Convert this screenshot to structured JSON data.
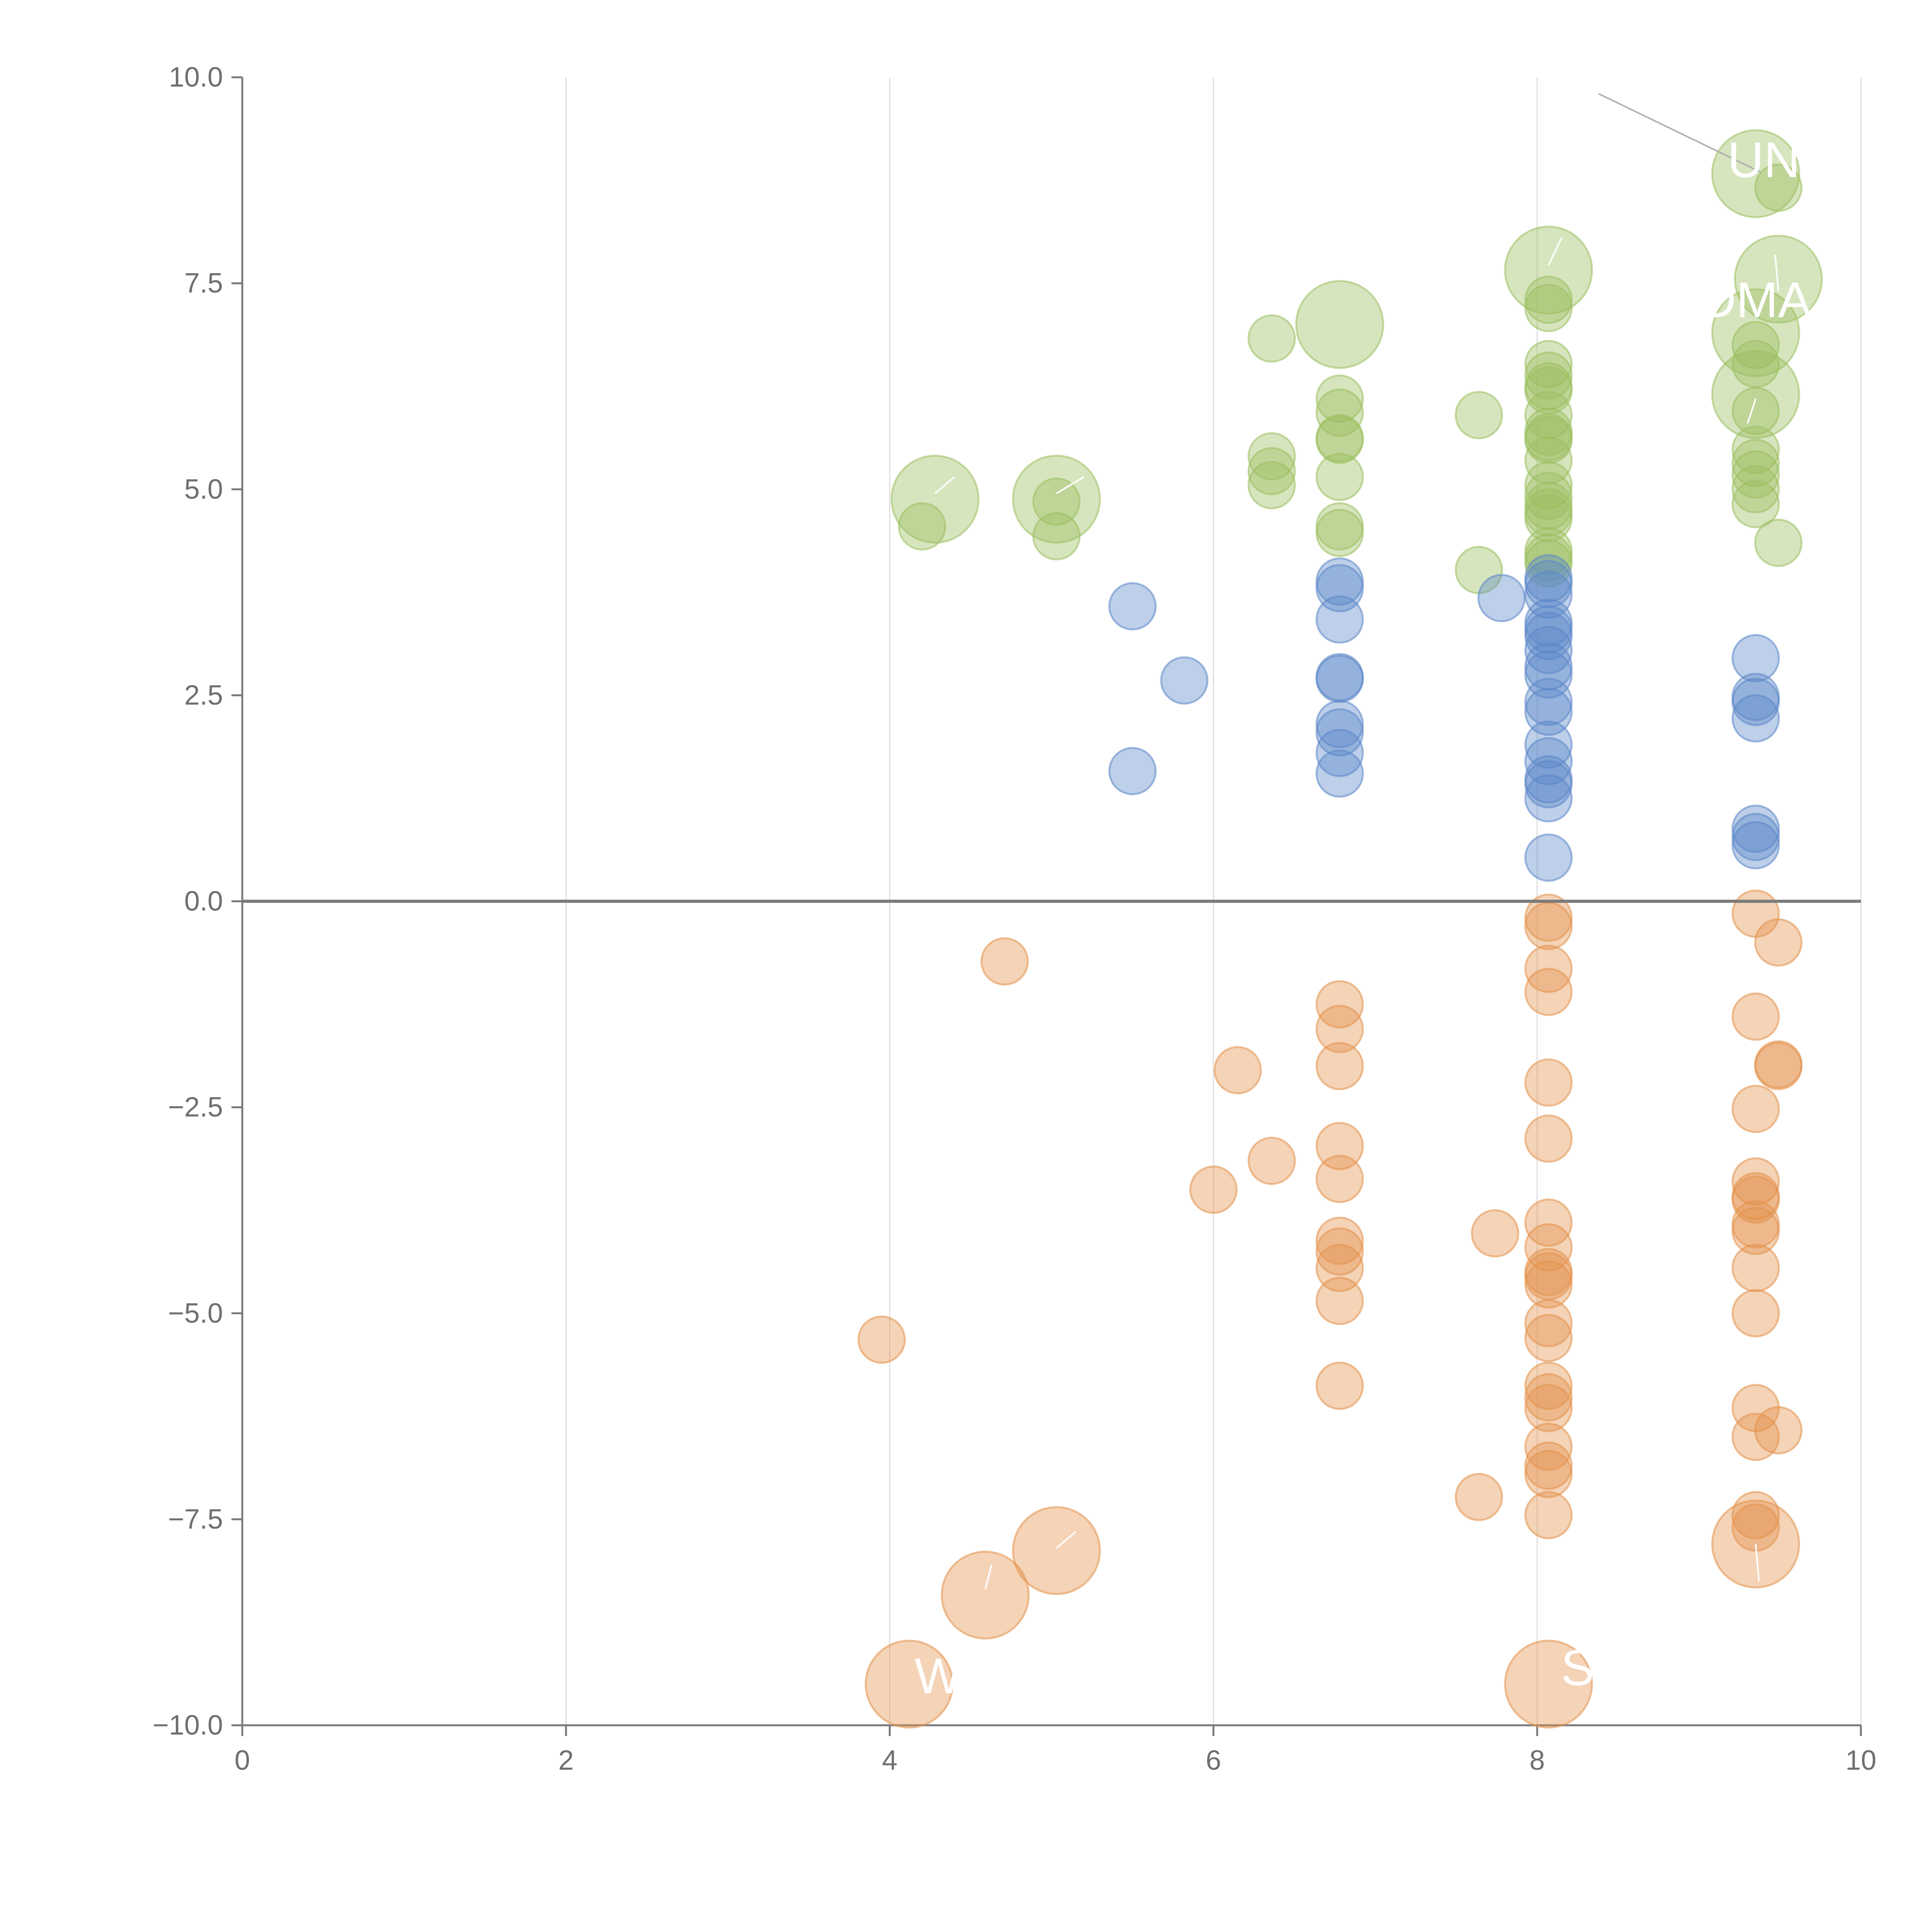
{
  "chart_data": {
    "type": "scatter",
    "title": "",
    "xlabel": "",
    "ylabel": "",
    "xlim": [
      0,
      10
    ],
    "ylim": [
      -10,
      10
    ],
    "x_ticks": [
      0,
      2,
      4,
      6,
      8,
      10
    ],
    "x_tick_labels": [
      "0",
      "2",
      "4",
      "6",
      "8",
      "10"
    ],
    "y_ticks": [
      -10,
      -7.5,
      -5,
      -2.5,
      0,
      2.5,
      5,
      7.5,
      10
    ],
    "y_tick_labels": [
      "−10.0",
      "−7.5",
      "−5.0",
      "−2.5",
      "0.0",
      "2.5",
      "5.0",
      "7.5",
      "10.0"
    ],
    "vertical_gridlines": true,
    "reference_line_y": 0,
    "colors": {
      "green": "#9bbf5e",
      "blue": "#5b87c8",
      "orange": "#e4924a",
      "axis": "#7a7a7a",
      "grid": "#dedede",
      "label": "#ffffff"
    },
    "series": [
      {
        "name": "green",
        "color": "#9bbf5e",
        "points": [
          {
            "x": 4.2,
            "y": 4.55,
            "r": 0.8
          },
          {
            "x": 4.28,
            "y": 4.88,
            "r": 1.5
          },
          {
            "x": 5.03,
            "y": 4.88,
            "r": 1.5
          },
          {
            "x": 5.03,
            "y": 4.85,
            "r": 0.8
          },
          {
            "x": 5.03,
            "y": 4.43,
            "r": 0.8
          },
          {
            "x": 6.36,
            "y": 6.83,
            "r": 0.8
          },
          {
            "x": 6.36,
            "y": 5.4,
            "r": 0.8
          },
          {
            "x": 6.36,
            "y": 5.22,
            "r": 0.8
          },
          {
            "x": 6.36,
            "y": 5.05,
            "r": 0.8
          },
          {
            "x": 6.78,
            "y": 7.0,
            "r": 1.5
          },
          {
            "x": 6.78,
            "y": 6.1,
            "r": 0.8
          },
          {
            "x": 6.78,
            "y": 5.93,
            "r": 0.8
          },
          {
            "x": 6.78,
            "y": 5.62,
            "r": 0.8
          },
          {
            "x": 6.78,
            "y": 5.6,
            "r": 0.8
          },
          {
            "x": 6.78,
            "y": 5.15,
            "r": 0.8
          },
          {
            "x": 6.78,
            "y": 4.55,
            "r": 0.8
          },
          {
            "x": 6.78,
            "y": 4.47,
            "r": 0.8
          },
          {
            "x": 7.64,
            "y": 5.9,
            "r": 0.8
          },
          {
            "x": 7.64,
            "y": 4.02,
            "r": 0.8
          },
          {
            "x": 8.07,
            "y": 7.66,
            "r": 1.5
          },
          {
            "x": 8.07,
            "y": 7.3,
            "r": 0.8
          },
          {
            "x": 8.07,
            "y": 7.2,
            "r": 0.8
          },
          {
            "x": 8.07,
            "y": 6.52,
            "r": 0.8
          },
          {
            "x": 8.07,
            "y": 6.38,
            "r": 0.8
          },
          {
            "x": 8.07,
            "y": 6.25,
            "r": 0.8
          },
          {
            "x": 8.07,
            "y": 6.2,
            "r": 0.8
          },
          {
            "x": 8.07,
            "y": 5.9,
            "r": 0.8
          },
          {
            "x": 8.07,
            "y": 5.7,
            "r": 0.8
          },
          {
            "x": 8.07,
            "y": 5.63,
            "r": 0.8
          },
          {
            "x": 8.07,
            "y": 5.6,
            "r": 0.8
          },
          {
            "x": 8.07,
            "y": 5.35,
            "r": 0.8
          },
          {
            "x": 8.07,
            "y": 5.05,
            "r": 0.8
          },
          {
            "x": 8.07,
            "y": 4.92,
            "r": 0.8
          },
          {
            "x": 8.07,
            "y": 4.8,
            "r": 0.8
          },
          {
            "x": 8.07,
            "y": 4.72,
            "r": 0.8
          },
          {
            "x": 8.07,
            "y": 4.65,
            "r": 0.8
          },
          {
            "x": 8.07,
            "y": 4.25,
            "r": 0.8
          },
          {
            "x": 8.07,
            "y": 4.17,
            "r": 0.8
          },
          {
            "x": 8.07,
            "y": 4.1,
            "r": 0.8
          },
          {
            "x": 9.35,
            "y": 8.83,
            "r": 1.5
          },
          {
            "x": 9.49,
            "y": 8.66,
            "r": 0.8
          },
          {
            "x": 9.49,
            "y": 7.55,
            "r": 1.5
          },
          {
            "x": 9.35,
            "y": 6.9,
            "r": 1.5
          },
          {
            "x": 9.35,
            "y": 6.75,
            "r": 0.8
          },
          {
            "x": 9.35,
            "y": 6.52,
            "r": 0.8
          },
          {
            "x": 9.35,
            "y": 6.15,
            "r": 1.5
          },
          {
            "x": 9.35,
            "y": 5.95,
            "r": 0.8
          },
          {
            "x": 9.35,
            "y": 5.48,
            "r": 0.8
          },
          {
            "x": 9.35,
            "y": 5.32,
            "r": 0.8
          },
          {
            "x": 9.35,
            "y": 5.18,
            "r": 0.8
          },
          {
            "x": 9.35,
            "y": 5.0,
            "r": 0.8
          },
          {
            "x": 9.35,
            "y": 4.82,
            "r": 0.8
          },
          {
            "x": 9.49,
            "y": 4.35,
            "r": 0.8
          }
        ]
      },
      {
        "name": "blue",
        "color": "#5b87c8",
        "points": [
          {
            "x": 5.5,
            "y": 3.58,
            "r": 0.8
          },
          {
            "x": 5.5,
            "y": 1.58,
            "r": 0.8
          },
          {
            "x": 5.82,
            "y": 2.68,
            "r": 0.8
          },
          {
            "x": 6.78,
            "y": 3.88,
            "r": 0.8
          },
          {
            "x": 6.78,
            "y": 3.8,
            "r": 0.8
          },
          {
            "x": 6.78,
            "y": 3.42,
            "r": 0.8
          },
          {
            "x": 6.78,
            "y": 2.72,
            "r": 0.8
          },
          {
            "x": 6.78,
            "y": 2.7,
            "r": 0.8
          },
          {
            "x": 6.78,
            "y": 2.15,
            "r": 0.8
          },
          {
            "x": 6.78,
            "y": 2.05,
            "r": 0.8
          },
          {
            "x": 6.78,
            "y": 1.8,
            "r": 0.8
          },
          {
            "x": 6.78,
            "y": 1.55,
            "r": 0.8
          },
          {
            "x": 7.78,
            "y": 3.68,
            "r": 0.8
          },
          {
            "x": 8.07,
            "y": 3.92,
            "r": 0.8
          },
          {
            "x": 8.07,
            "y": 3.85,
            "r": 0.8
          },
          {
            "x": 8.07,
            "y": 3.72,
            "r": 0.8
          },
          {
            "x": 8.07,
            "y": 3.38,
            "r": 0.8
          },
          {
            "x": 8.07,
            "y": 3.3,
            "r": 0.8
          },
          {
            "x": 8.07,
            "y": 3.22,
            "r": 0.8
          },
          {
            "x": 8.07,
            "y": 3.05,
            "r": 0.8
          },
          {
            "x": 8.07,
            "y": 2.85,
            "r": 0.8
          },
          {
            "x": 8.07,
            "y": 2.75,
            "r": 0.8
          },
          {
            "x": 8.07,
            "y": 2.42,
            "r": 0.8
          },
          {
            "x": 8.07,
            "y": 2.3,
            "r": 0.8
          },
          {
            "x": 8.07,
            "y": 1.9,
            "r": 0.8
          },
          {
            "x": 8.07,
            "y": 1.7,
            "r": 0.8
          },
          {
            "x": 8.07,
            "y": 1.48,
            "r": 0.8
          },
          {
            "x": 8.07,
            "y": 1.42,
            "r": 0.8
          },
          {
            "x": 8.07,
            "y": 1.25,
            "r": 0.8
          },
          {
            "x": 8.07,
            "y": 0.53,
            "r": 0.8
          },
          {
            "x": 9.35,
            "y": 2.95,
            "r": 0.8
          },
          {
            "x": 9.35,
            "y": 2.48,
            "r": 0.8
          },
          {
            "x": 9.35,
            "y": 2.42,
            "r": 0.8
          },
          {
            "x": 9.35,
            "y": 2.22,
            "r": 0.8
          },
          {
            "x": 9.35,
            "y": 0.88,
            "r": 0.8
          },
          {
            "x": 9.35,
            "y": 0.78,
            "r": 0.8
          },
          {
            "x": 9.35,
            "y": 0.68,
            "r": 0.8
          }
        ]
      },
      {
        "name": "orange",
        "color": "#e4924a",
        "points": [
          {
            "x": 3.95,
            "y": -5.32,
            "r": 0.8
          },
          {
            "x": 4.12,
            "y": -9.5,
            "r": 1.5
          },
          {
            "x": 4.59,
            "y": -8.42,
            "r": 1.5
          },
          {
            "x": 4.71,
            "y": -0.73,
            "r": 0.8
          },
          {
            "x": 5.03,
            "y": -7.88,
            "r": 1.5
          },
          {
            "x": 6.0,
            "y": -3.5,
            "r": 0.8
          },
          {
            "x": 6.15,
            "y": -2.05,
            "r": 0.8
          },
          {
            "x": 6.36,
            "y": -3.15,
            "r": 0.8
          },
          {
            "x": 6.78,
            "y": -1.25,
            "r": 0.8
          },
          {
            "x": 6.78,
            "y": -1.55,
            "r": 0.8
          },
          {
            "x": 6.78,
            "y": -2.0,
            "r": 0.8
          },
          {
            "x": 6.78,
            "y": -2.97,
            "r": 0.8
          },
          {
            "x": 6.78,
            "y": -3.37,
            "r": 0.8
          },
          {
            "x": 6.78,
            "y": -4.12,
            "r": 0.8
          },
          {
            "x": 6.78,
            "y": -4.25,
            "r": 0.8
          },
          {
            "x": 6.78,
            "y": -4.45,
            "r": 0.8
          },
          {
            "x": 6.78,
            "y": -4.85,
            "r": 0.8
          },
          {
            "x": 6.78,
            "y": -5.88,
            "r": 0.8
          },
          {
            "x": 7.64,
            "y": -7.23,
            "r": 0.8
          },
          {
            "x": 7.74,
            "y": -4.03,
            "r": 0.8
          },
          {
            "x": 8.07,
            "y": -0.2,
            "r": 0.8
          },
          {
            "x": 8.07,
            "y": -0.3,
            "r": 0.8
          },
          {
            "x": 8.07,
            "y": -0.82,
            "r": 0.8
          },
          {
            "x": 8.07,
            "y": -1.1,
            "r": 0.8
          },
          {
            "x": 8.07,
            "y": -2.2,
            "r": 0.8
          },
          {
            "x": 8.07,
            "y": -2.88,
            "r": 0.8
          },
          {
            "x": 8.07,
            "y": -3.9,
            "r": 0.8
          },
          {
            "x": 8.07,
            "y": -4.2,
            "r": 0.8
          },
          {
            "x": 8.07,
            "y": -4.5,
            "r": 0.8
          },
          {
            "x": 8.07,
            "y": -4.55,
            "r": 0.8
          },
          {
            "x": 8.07,
            "y": -4.65,
            "r": 0.8
          },
          {
            "x": 8.07,
            "y": -5.12,
            "r": 0.8
          },
          {
            "x": 8.07,
            "y": -5.3,
            "r": 0.8
          },
          {
            "x": 8.07,
            "y": -5.88,
            "r": 0.8
          },
          {
            "x": 8.07,
            "y": -6.02,
            "r": 0.8
          },
          {
            "x": 8.07,
            "y": -6.15,
            "r": 0.8
          },
          {
            "x": 8.07,
            "y": -6.62,
            "r": 0.8
          },
          {
            "x": 8.07,
            "y": -6.85,
            "r": 0.8
          },
          {
            "x": 8.07,
            "y": -6.95,
            "r": 0.8
          },
          {
            "x": 8.07,
            "y": -7.45,
            "r": 0.8
          },
          {
            "x": 8.07,
            "y": -9.5,
            "r": 1.5
          },
          {
            "x": 9.35,
            "y": -0.15,
            "r": 0.8
          },
          {
            "x": 9.49,
            "y": -0.5,
            "r": 0.8
          },
          {
            "x": 9.35,
            "y": -1.4,
            "r": 0.8
          },
          {
            "x": 9.49,
            "y": -1.98,
            "r": 0.8
          },
          {
            "x": 9.49,
            "y": -2.0,
            "r": 0.8
          },
          {
            "x": 9.35,
            "y": -2.52,
            "r": 0.8
          },
          {
            "x": 9.35,
            "y": -3.4,
            "r": 0.8
          },
          {
            "x": 9.35,
            "y": -3.58,
            "r": 0.8
          },
          {
            "x": 9.35,
            "y": -3.62,
            "r": 0.8
          },
          {
            "x": 9.35,
            "y": -3.92,
            "r": 0.8
          },
          {
            "x": 9.35,
            "y": -4.0,
            "r": 0.8
          },
          {
            "x": 9.35,
            "y": -4.45,
            "r": 0.8
          },
          {
            "x": 9.35,
            "y": -5.0,
            "r": 0.8
          },
          {
            "x": 9.35,
            "y": -6.15,
            "r": 0.8
          },
          {
            "x": 9.35,
            "y": -6.5,
            "r": 0.8
          },
          {
            "x": 9.49,
            "y": -6.42,
            "r": 0.8
          },
          {
            "x": 9.35,
            "y": -7.45,
            "r": 0.8
          },
          {
            "x": 9.35,
            "y": -7.6,
            "r": 0.8
          },
          {
            "x": 9.35,
            "y": -7.8,
            "r": 1.5
          }
        ]
      }
    ],
    "annotations": [
      {
        "text": "UN",
        "x": 9.4,
        "y": 9.0
      },
      {
        "text": "DMA",
        "x": 9.35,
        "y": 7.3
      },
      {
        "text": "W",
        "x": 4.3,
        "y": -9.4
      },
      {
        "text": "S",
        "x": 8.25,
        "y": -9.3
      }
    ],
    "leader_lines": [
      {
        "x1": 8.38,
        "y1": 9.8,
        "x2": 9.38,
        "y2": 8.85,
        "color": "#b0b0b0"
      },
      {
        "x1": 4.28,
        "y1": 4.95,
        "x2": 4.4,
        "y2": 5.15,
        "color": "#ffffff"
      },
      {
        "x1": 5.03,
        "y1": 4.95,
        "x2": 5.2,
        "y2": 5.15,
        "color": "#ffffff"
      },
      {
        "x1": 8.07,
        "y1": 7.72,
        "x2": 8.15,
        "y2": 8.05,
        "color": "#ffffff"
      },
      {
        "x1": 9.49,
        "y1": 7.4,
        "x2": 9.47,
        "y2": 7.85,
        "color": "#ffffff"
      },
      {
        "x1": 9.35,
        "y1": 6.1,
        "x2": 9.3,
        "y2": 5.8,
        "color": "#ffffff"
      },
      {
        "x1": 4.59,
        "y1": -8.35,
        "x2": 4.63,
        "y2": -8.05,
        "color": "#ffffff"
      },
      {
        "x1": 5.03,
        "y1": -7.85,
        "x2": 5.15,
        "y2": -7.65,
        "color": "#ffffff"
      },
      {
        "x1": 9.35,
        "y1": -7.8,
        "x2": 9.37,
        "y2": -8.25,
        "color": "#ffffff"
      }
    ]
  }
}
